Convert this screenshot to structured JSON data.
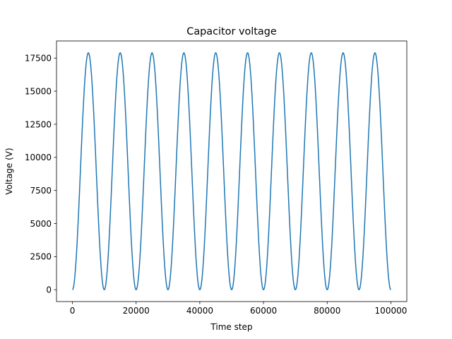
{
  "chart_data": {
    "type": "line",
    "title": "Capacitor voltage",
    "xlabel": "Time step",
    "ylabel": "Voltage (V)",
    "xlim": [
      -5000,
      105000
    ],
    "ylim": [
      -895,
      18795
    ],
    "x_ticks": [
      0,
      20000,
      40000,
      60000,
      80000,
      100000
    ],
    "x_tick_labels": [
      "0",
      "20000",
      "40000",
      "60000",
      "80000",
      "100000"
    ],
    "y_ticks": [
      0,
      2500,
      5000,
      7500,
      10000,
      12500,
      15000,
      17500
    ],
    "y_tick_labels": [
      "0",
      "2500",
      "5000",
      "7500",
      "10000",
      "12500",
      "15000",
      "17500"
    ],
    "grid": false,
    "legend": "none",
    "series": [
      {
        "color": "#1f77b4",
        "x": [
          0,
          1250,
          2500,
          3750,
          5000,
          6250,
          7500,
          8750,
          10000,
          11250,
          12500,
          13750,
          15000,
          16250,
          17500,
          18750,
          20000,
          21250,
          22500,
          23750,
          25000,
          26250,
          27500,
          28750,
          30000,
          31250,
          32500,
          33750,
          35000,
          36250,
          37500,
          38750,
          40000,
          41250,
          42500,
          43750,
          45000,
          46250,
          47500,
          48750,
          50000,
          51250,
          52500,
          53750,
          55000,
          56250,
          57500,
          58750,
          60000,
          61250,
          62500,
          63750,
          65000,
          66250,
          67500,
          68750,
          70000,
          71250,
          72500,
          73750,
          75000,
          76250,
          77500,
          78750,
          80000,
          81250,
          82500,
          83750,
          85000,
          86250,
          87500,
          88750,
          90000,
          91250,
          92500,
          93750,
          95000,
          96250,
          97500,
          98750,
          100000
        ],
        "y": [
          0,
          2620,
          8950,
          15280,
          17900,
          15280,
          8950,
          2620,
          0,
          2620,
          8950,
          15280,
          17900,
          15280,
          8950,
          2620,
          0,
          2620,
          8950,
          15280,
          17900,
          15280,
          8950,
          2620,
          0,
          2620,
          8950,
          15280,
          17900,
          15280,
          8950,
          2620,
          0,
          2620,
          8950,
          15280,
          17900,
          15280,
          8950,
          2620,
          0,
          2620,
          8950,
          15280,
          17900,
          15280,
          8950,
          2620,
          0,
          2620,
          8950,
          15280,
          17900,
          15280,
          8950,
          2620,
          0,
          2620,
          8950,
          15280,
          17900,
          15280,
          8950,
          2620,
          0,
          2620,
          8950,
          15280,
          17900,
          15280,
          8950,
          2620,
          0,
          2620,
          8950,
          15280,
          17900,
          15280,
          8950,
          2620,
          0
        ]
      }
    ]
  }
}
